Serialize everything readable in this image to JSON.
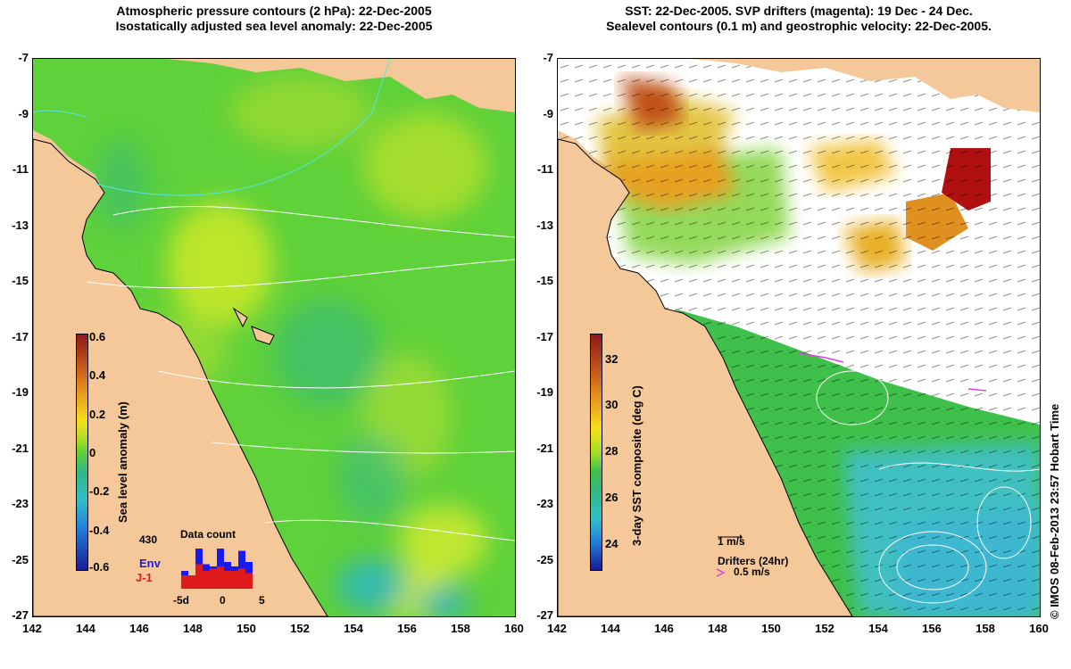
{
  "left_panel": {
    "title_line1": "Atmospheric pressure contours (2 hPa): 22-Dec-2005",
    "title_line2": "Isostatically adjusted sea level anomaly: 22-Dec-2005",
    "colorbar": {
      "label": "Sea level anomaly (m)",
      "ticks": [
        "0.6",
        "0.4",
        "0.2",
        "0",
        "-0.2",
        "-0.4",
        "-0.6"
      ]
    },
    "data_count": {
      "title": "Data count",
      "max_label": "430",
      "series_env": "Env",
      "series_j1": "J-1",
      "xticks": [
        "-5d",
        "0",
        "5"
      ],
      "env_values": [
        0.4,
        0.3,
        0.9,
        0.55,
        0.5,
        0.9,
        0.6,
        0.5,
        0.85,
        0.6
      ],
      "j1_values": [
        0.3,
        0.3,
        0.55,
        0.4,
        0.45,
        0.5,
        0.4,
        0.4,
        0.45,
        0.35
      ]
    }
  },
  "right_panel": {
    "title_line1": "SST: 22-Dec-2005. SVP drifters (magenta): 19 Dec - 24 Dec.",
    "title_line2": "Sealevel contours (0.1 m) and geostrophic velocity: 22-Dec-2005.",
    "colorbar": {
      "label": "3-day SST composite (deg C)",
      "ticks": [
        "32",
        "30",
        "28",
        "26",
        "24"
      ]
    },
    "scale_arrow_label": "1 m/s",
    "drifters_label": "Drifters (24hr)",
    "drifters_speed_label": "0.5 m/s"
  },
  "axes": {
    "x_ticks": [
      "142",
      "144",
      "146",
      "148",
      "150",
      "152",
      "154",
      "156",
      "158",
      "160"
    ],
    "y_ticks": [
      "-7",
      "-9",
      "-11",
      "-13",
      "-15",
      "-17",
      "-19",
      "-21",
      "-23",
      "-25",
      "-27"
    ]
  },
  "credit": "© IMOS 08-Feb-2013 23:57 Hobart Time",
  "colors": {
    "land": "#f5c89a",
    "sea_green": "#5fd13a",
    "ocean_cyan": "#3fc4d4",
    "magenta": "#e040e0"
  }
}
